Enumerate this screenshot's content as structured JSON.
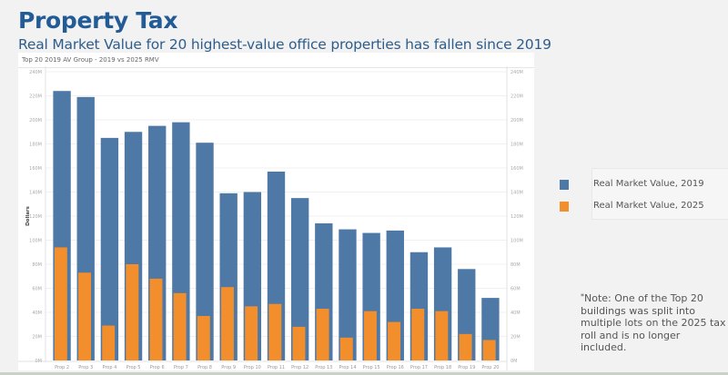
{
  "header": {
    "title": "Property Tax",
    "subtitle": "Real Market Value for 20 highest-value office properties has fallen since 2019"
  },
  "panel": {
    "title": "Top 20 2019 AV Group -  2019 vs 2025 RMV"
  },
  "legend": {
    "items": [
      {
        "label": "Real Market Value, 2019",
        "color": "#4e79a7"
      },
      {
        "label": "Real Market Value, 2025",
        "color": "#f28e2b"
      }
    ]
  },
  "note": {
    "asterisk": "*",
    "text": "Note: One of the Top 20 buildings was split into multiple lots on the 2025 tax roll and is no longer included."
  },
  "chart_data": {
    "type": "bar",
    "title": "Top 20 2019 AV Group -  2019 vs 2025 RMV",
    "xlabel": "",
    "ylabel": "Dollars",
    "ylim": [
      0,
      240
    ],
    "y_unit": "M",
    "yticks": [
      "0M",
      "20M",
      "40M",
      "60M",
      "80M",
      "100M",
      "120M",
      "140M",
      "160M",
      "180M",
      "200M",
      "220M",
      "240M"
    ],
    "ytick_values": [
      0,
      20,
      40,
      60,
      80,
      100,
      120,
      140,
      160,
      180,
      200,
      220,
      240
    ],
    "dual_axis_labels": true,
    "grid": true,
    "overlay": true,
    "legend_position": "right",
    "categories": [
      "Prop 2",
      "Prop 3",
      "Prop 4",
      "Prop 5",
      "Prop 6",
      "Prop 7",
      "Prop 8",
      "Prop 9",
      "Prop 10",
      "Prop 11",
      "Prop 12",
      "Prop 13",
      "Prop 14",
      "Prop 15",
      "Prop 16",
      "Prop 17",
      "Prop 18",
      "Prop 19",
      "Prop 20"
    ],
    "series": [
      {
        "name": "Real Market Value, 2019",
        "color": "#4e79a7",
        "values": [
          224,
          219,
          185,
          190,
          195,
          198,
          181,
          139,
          140,
          157,
          135,
          114,
          109,
          106,
          108,
          90,
          94,
          76,
          52
        ]
      },
      {
        "name": "Real Market Value, 2025",
        "color": "#f28e2b",
        "values": [
          94,
          73,
          29,
          80,
          68,
          56,
          37,
          61,
          45,
          47,
          28,
          43,
          19,
          41,
          32,
          43,
          41,
          22,
          17
        ]
      }
    ]
  }
}
